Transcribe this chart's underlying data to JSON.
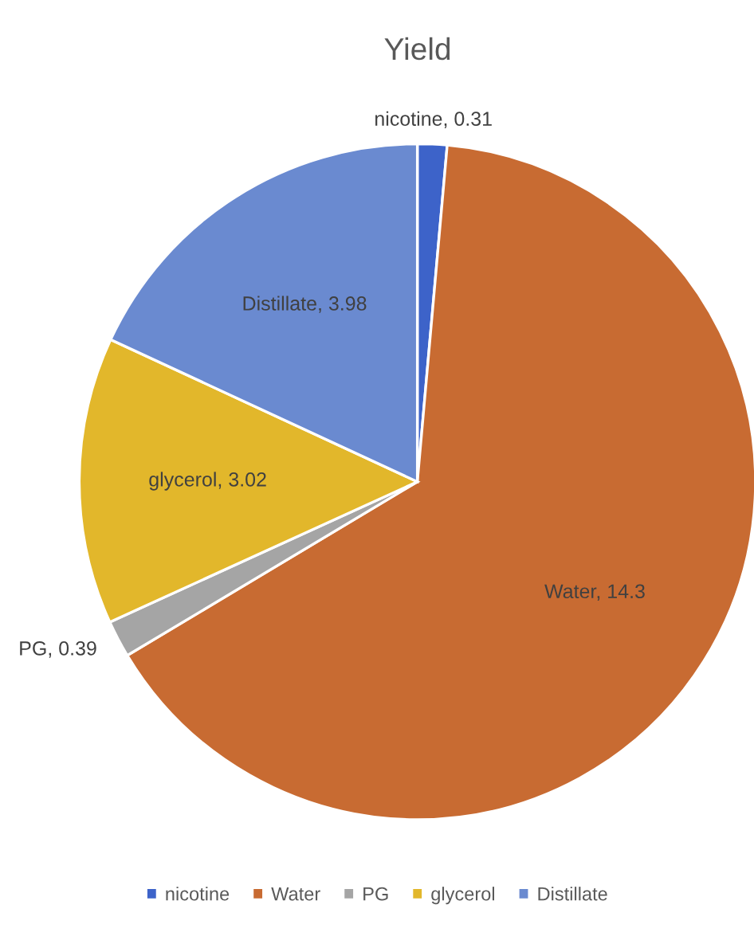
{
  "chart_data": {
    "type": "pie",
    "title": "Yield",
    "categories": [
      "nicotine",
      "Water",
      "PG",
      "glycerol",
      "Distillate"
    ],
    "values": [
      0.31,
      14.3,
      0.39,
      3.02,
      3.98
    ],
    "colors": [
      "#3d63c9",
      "#c86b32",
      "#a5a5a5",
      "#e2b72b",
      "#6a8ad0"
    ],
    "value_labels": [
      "nicotine, 0.31",
      "Water, 14.3",
      "PG, 0.39",
      "glycerol, 3.02",
      "Distillate, 3.98"
    ],
    "legend": "bottom"
  }
}
